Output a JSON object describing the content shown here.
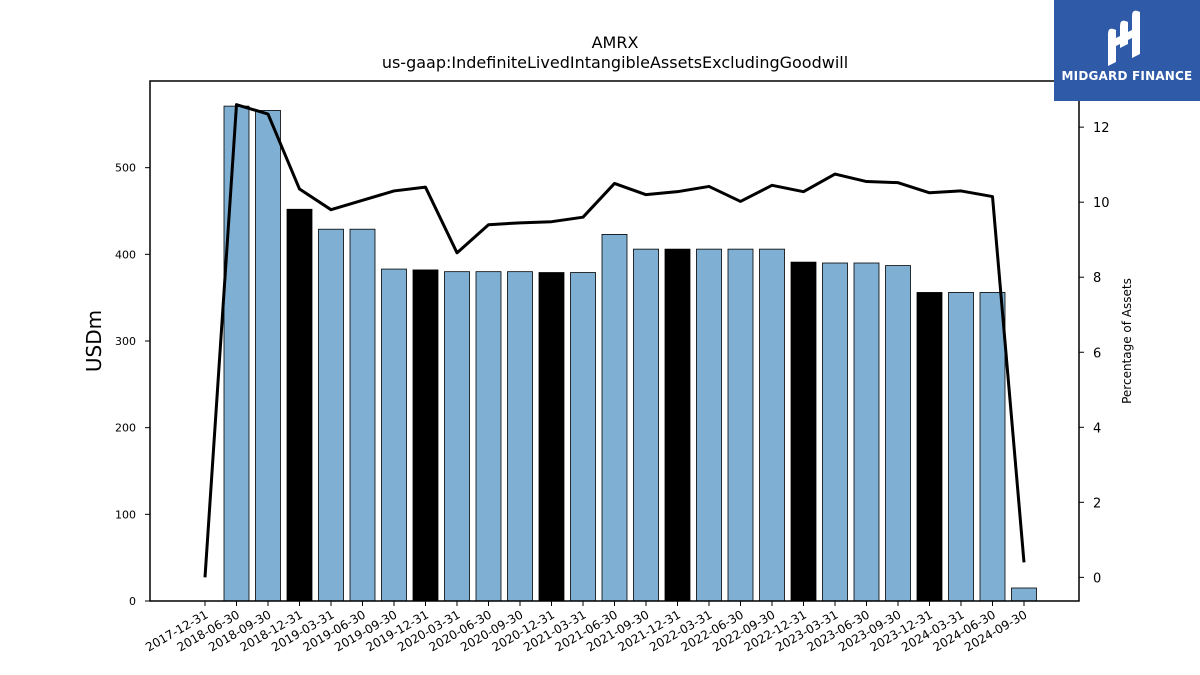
{
  "chart_data": {
    "type": "bar",
    "title": "AMRX",
    "subtitle": "us-gaap:IndefiniteLivedIntangibleAssetsExcludingGoodwill",
    "ylabel": "USDm",
    "y2label": "Percentage of Assets",
    "ylim": [
      0,
      600
    ],
    "y2lim": [
      -0.63,
      13.23
    ],
    "yticks": [
      0,
      100,
      200,
      300,
      400,
      500
    ],
    "y2ticks": [
      0,
      2,
      4,
      6,
      8,
      10,
      12
    ],
    "grid": false,
    "categories": [
      "2017-12-31",
      "2018-06-30",
      "2018-09-30",
      "2018-12-31",
      "2019-03-31",
      "2019-06-30",
      "2019-09-30",
      "2019-12-31",
      "2020-03-31",
      "2020-06-30",
      "2020-09-30",
      "2020-12-31",
      "2021-03-31",
      "2021-06-30",
      "2021-09-30",
      "2021-12-31",
      "2022-03-31",
      "2022-06-30",
      "2022-09-30",
      "2022-12-31",
      "2023-03-31",
      "2023-06-30",
      "2023-09-30",
      "2023-12-31",
      "2024-03-31",
      "2024-06-30",
      "2024-09-30"
    ],
    "series": [
      {
        "kind": "bar",
        "values": [
          0,
          571,
          566,
          452,
          429,
          429,
          383,
          382,
          380,
          380,
          380,
          379,
          379,
          423,
          406,
          406,
          406,
          406,
          406,
          391,
          390,
          390,
          387,
          356,
          356,
          356,
          15
        ]
      },
      {
        "kind": "line",
        "axis": "right",
        "values": [
          0,
          12.6,
          12.35,
          10.35,
          9.8,
          10.05,
          10.3,
          10.4,
          8.65,
          9.4,
          9.45,
          9.48,
          9.6,
          10.5,
          10.2,
          10.28,
          10.42,
          10.02,
          10.45,
          10.28,
          10.75,
          10.55,
          10.52,
          10.25,
          10.3,
          10.15,
          0.4
        ]
      }
    ],
    "colors": {
      "bar": "#7fb0d4",
      "bar_year_end": "#000000",
      "line": "#000000"
    },
    "year_end_categories": [
      "2018-12-31",
      "2019-12-31",
      "2020-12-31",
      "2021-12-31",
      "2022-12-31",
      "2023-12-31"
    ]
  },
  "logo": {
    "text": "MIDGARD FINANCE"
  }
}
